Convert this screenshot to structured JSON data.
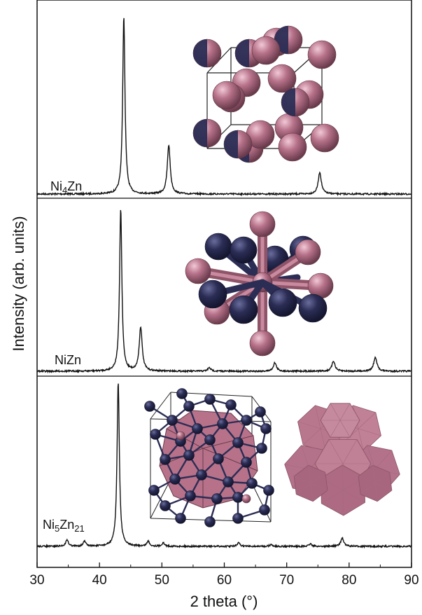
{
  "chart_data": {
    "type": "line",
    "xlabel": "2 theta (°)",
    "ylabel": "Intensity (arb. units)",
    "xlim": [
      30,
      90
    ],
    "xticks": [
      30,
      40,
      50,
      60,
      70,
      80,
      90
    ],
    "panels": [
      {
        "name": "Ni4Zn",
        "label_main": "Ni",
        "label_sub1": "4",
        "label_tail": "Zn",
        "label_sub2": "",
        "peaks": [
          {
            "x": 43.9,
            "h": 0.98,
            "w": 0.22
          },
          {
            "x": 51.1,
            "h": 0.27,
            "w": 0.28
          },
          {
            "x": 75.3,
            "h": 0.12,
            "w": 0.3
          }
        ]
      },
      {
        "name": "NiZn",
        "label_main": "NiZn",
        "label_sub1": "",
        "label_tail": "",
        "label_sub2": "",
        "peaks": [
          {
            "x": 43.4,
            "h": 0.96,
            "w": 0.22
          },
          {
            "x": 46.6,
            "h": 0.26,
            "w": 0.28
          },
          {
            "x": 57.6,
            "h": 0.02,
            "w": 0.3
          },
          {
            "x": 68.1,
            "h": 0.05,
            "w": 0.3
          },
          {
            "x": 77.5,
            "h": 0.06,
            "w": 0.3
          },
          {
            "x": 84.2,
            "h": 0.08,
            "w": 0.32
          }
        ]
      },
      {
        "name": "Ni5Zn21",
        "label_main": "Ni",
        "label_sub1": "5",
        "label_tail": "Zn",
        "label_sub2": "21",
        "peaks": [
          {
            "x": 34.8,
            "h": 0.04,
            "w": 0.25
          },
          {
            "x": 37.6,
            "h": 0.03,
            "w": 0.25
          },
          {
            "x": 43.0,
            "h": 0.98,
            "w": 0.22
          },
          {
            "x": 47.8,
            "h": 0.03,
            "w": 0.25
          },
          {
            "x": 50.2,
            "h": 0.02,
            "w": 0.25
          },
          {
            "x": 62.3,
            "h": 0.02,
            "w": 0.25
          },
          {
            "x": 67.5,
            "h": 0.01,
            "w": 0.25
          },
          {
            "x": 73.8,
            "h": 0.015,
            "w": 0.25
          },
          {
            "x": 78.9,
            "h": 0.05,
            "w": 0.28
          }
        ]
      }
    ],
    "colors": {
      "pink": "#b7728a",
      "pink_dark": "#7d4a5c",
      "navy": "#2b2d55",
      "line": "#111111"
    }
  }
}
